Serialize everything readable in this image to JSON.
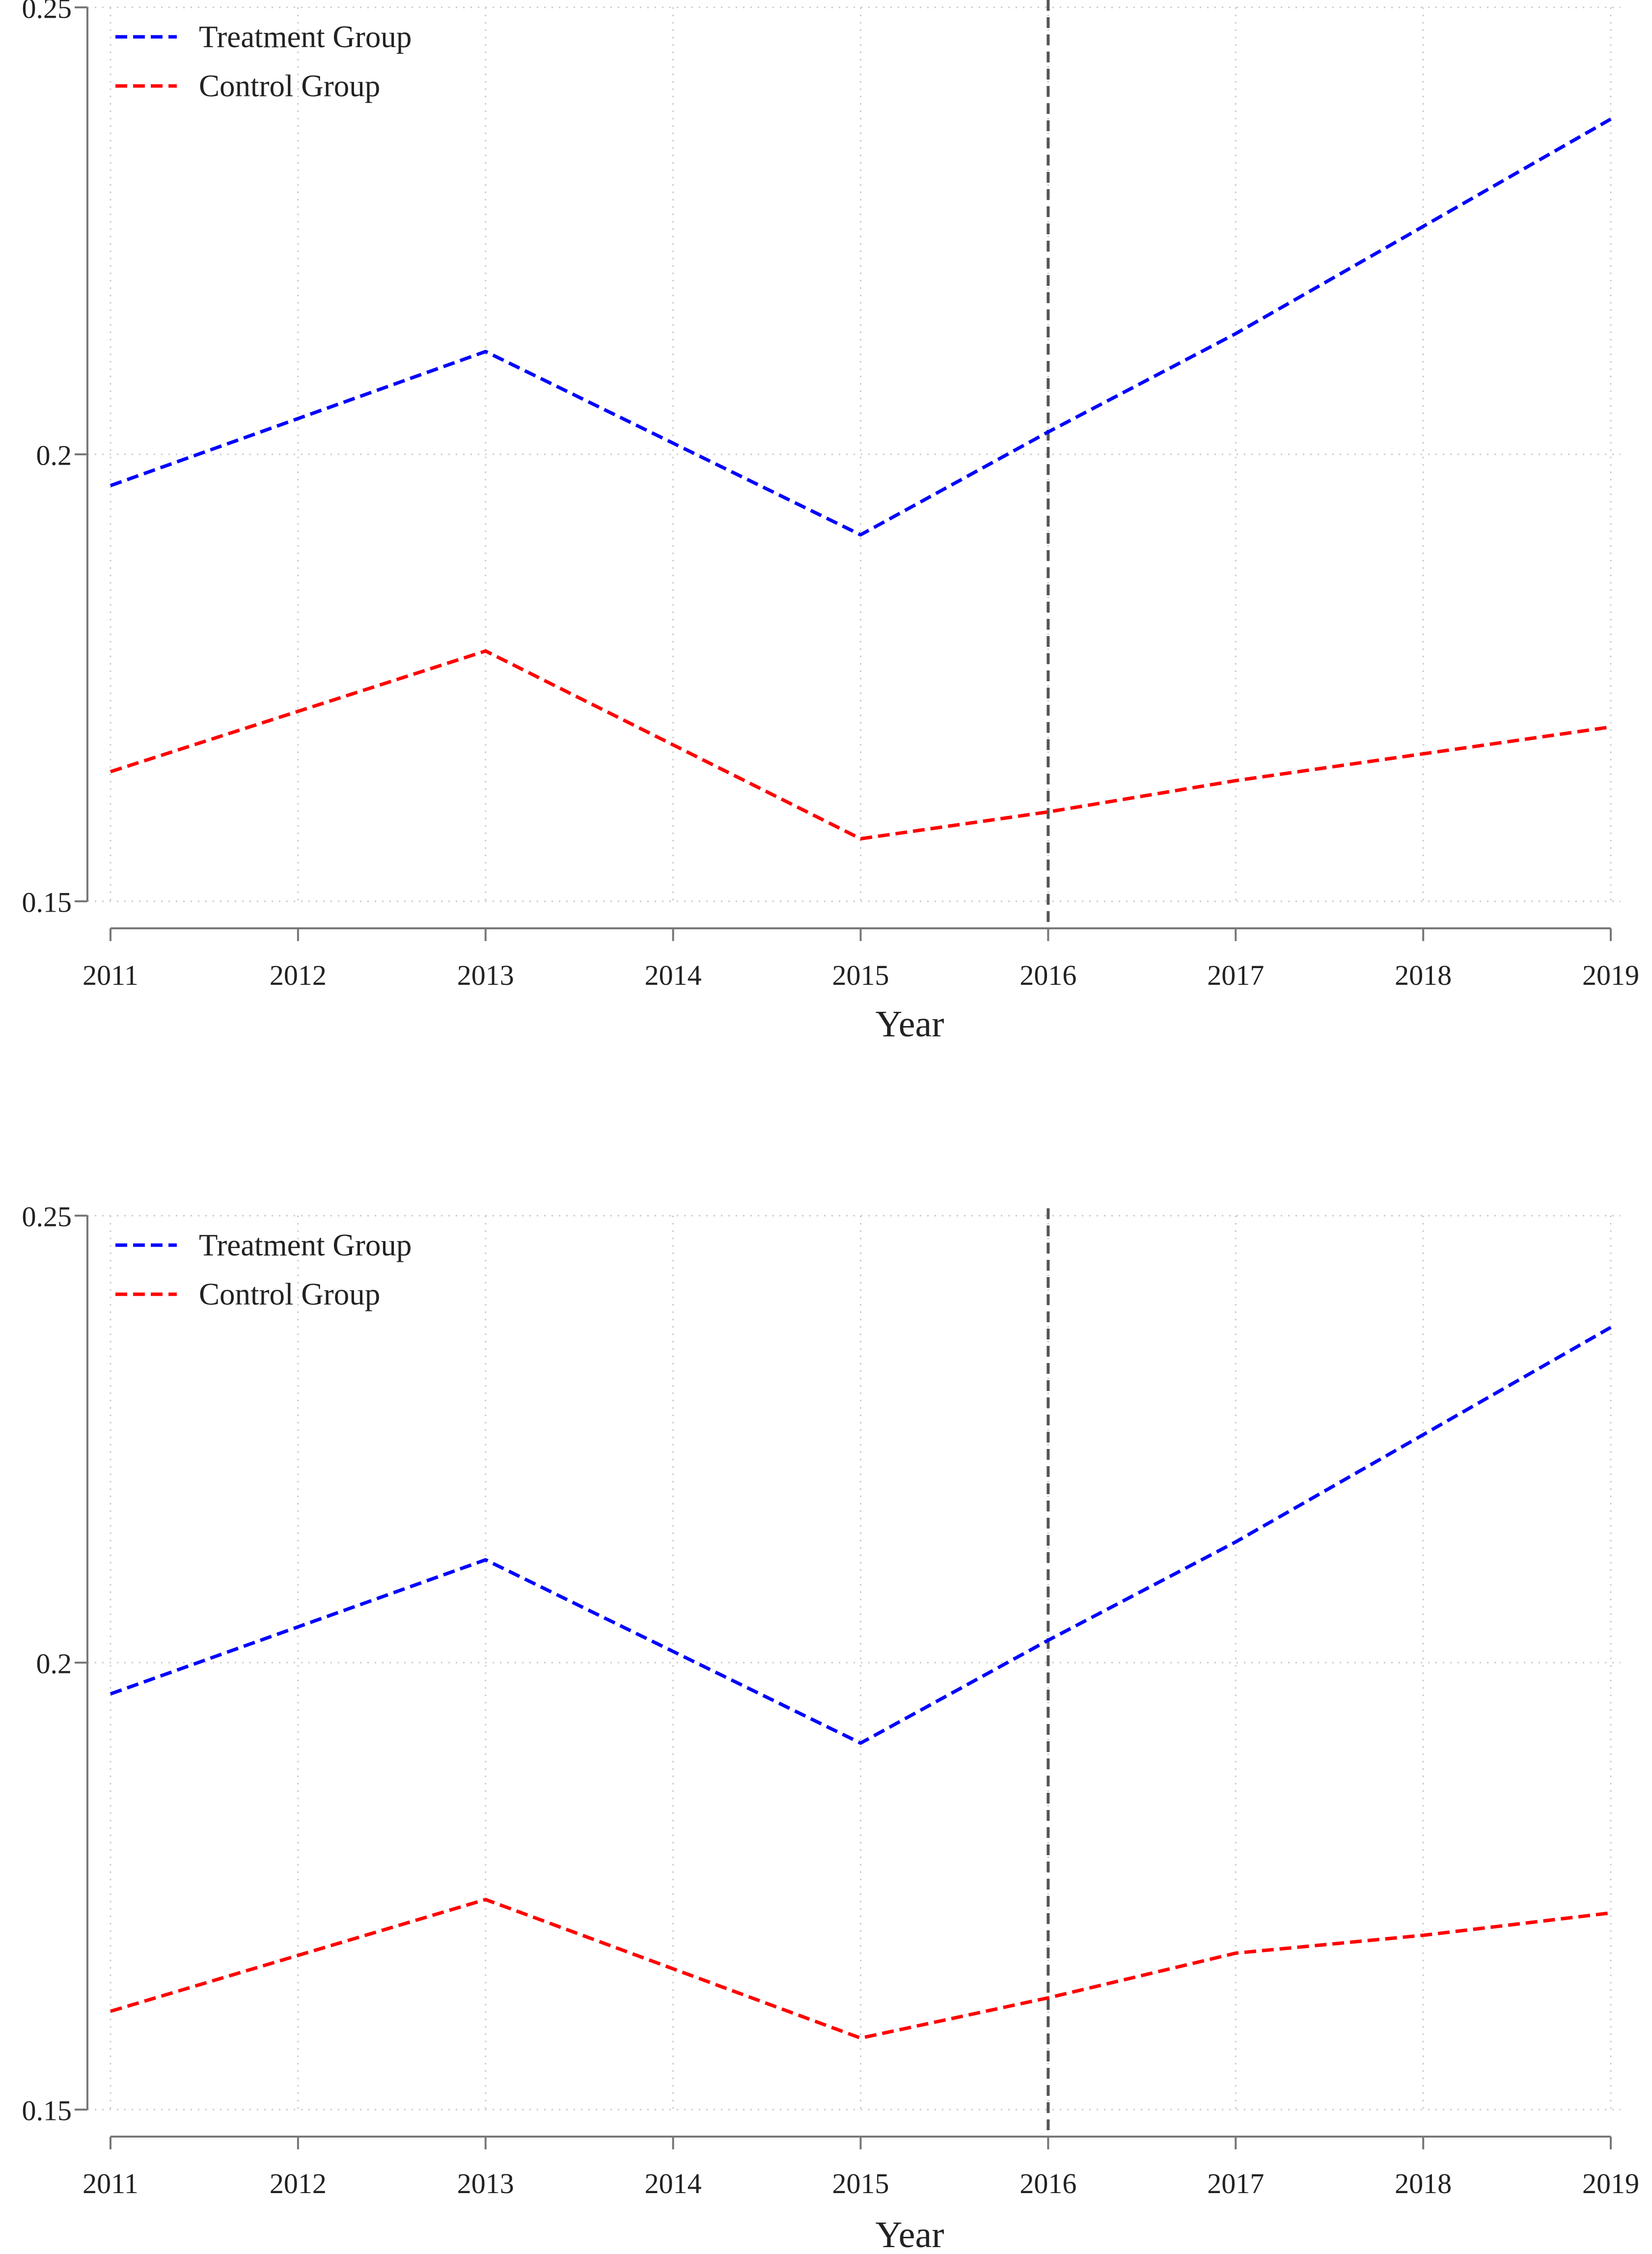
{
  "chart_data": [
    {
      "type": "line",
      "title": "",
      "xlabel": "Year",
      "ylabel": "",
      "x": [
        2011,
        2013,
        2015,
        2016,
        2017,
        2018,
        2019
      ],
      "xticks": [
        2011,
        2012,
        2013,
        2014,
        2015,
        2016,
        2017,
        2018,
        2019
      ],
      "xtick_labels": [
        "2011",
        "2012",
        "2013",
        "2014",
        "2015",
        "2016",
        "2017",
        "2018",
        "2019"
      ],
      "yticks": [
        0.15,
        0.2,
        0.25
      ],
      "ytick_labels": [
        "0.15",
        "0.2",
        "0.25"
      ],
      "ylim": [
        0.15,
        0.25
      ],
      "xlim": [
        2011,
        2019
      ],
      "grid": true,
      "legend_position": "top-left",
      "reference_line": {
        "x": 2016,
        "color": "#555555",
        "style": "dashed"
      },
      "series": [
        {
          "name": "Treatment Group",
          "color": "#0000ff",
          "style": "dashed",
          "values": [
            0.1965,
            0.2115,
            0.191,
            0.2025,
            0.2135,
            0.2255,
            0.2375
          ]
        },
        {
          "name": "Control Group",
          "color": "#ff0000",
          "style": "dashed",
          "values": [
            0.1645,
            0.178,
            0.157,
            0.16,
            0.1635,
            0.1665,
            0.1695
          ]
        }
      ]
    },
    {
      "type": "line",
      "title": "",
      "xlabel": "Year",
      "ylabel": "",
      "x": [
        2011,
        2013,
        2015,
        2016,
        2017,
        2018,
        2019
      ],
      "xticks": [
        2011,
        2012,
        2013,
        2014,
        2015,
        2016,
        2017,
        2018,
        2019
      ],
      "xtick_labels": [
        "2011",
        "2012",
        "2013",
        "2014",
        "2015",
        "2016",
        "2017",
        "2018",
        "2019"
      ],
      "yticks": [
        0.15,
        0.2,
        0.25
      ],
      "ytick_labels": [
        "0.15",
        "0.2",
        "0.25"
      ],
      "ylim": [
        0.15,
        0.25
      ],
      "xlim": [
        2011,
        2019
      ],
      "grid": true,
      "legend_position": "top-left",
      "reference_line": {
        "x": 2016,
        "color": "#555555",
        "style": "dashed"
      },
      "series": [
        {
          "name": "Treatment Group",
          "color": "#0000ff",
          "style": "dashed",
          "values": [
            0.1965,
            0.2115,
            0.191,
            0.2025,
            0.2135,
            0.2255,
            0.2375
          ]
        },
        {
          "name": "Control Group",
          "color": "#ff0000",
          "style": "dashed",
          "values": [
            0.161,
            0.1735,
            0.158,
            0.1625,
            0.1675,
            0.1695,
            0.172
          ]
        }
      ]
    }
  ]
}
